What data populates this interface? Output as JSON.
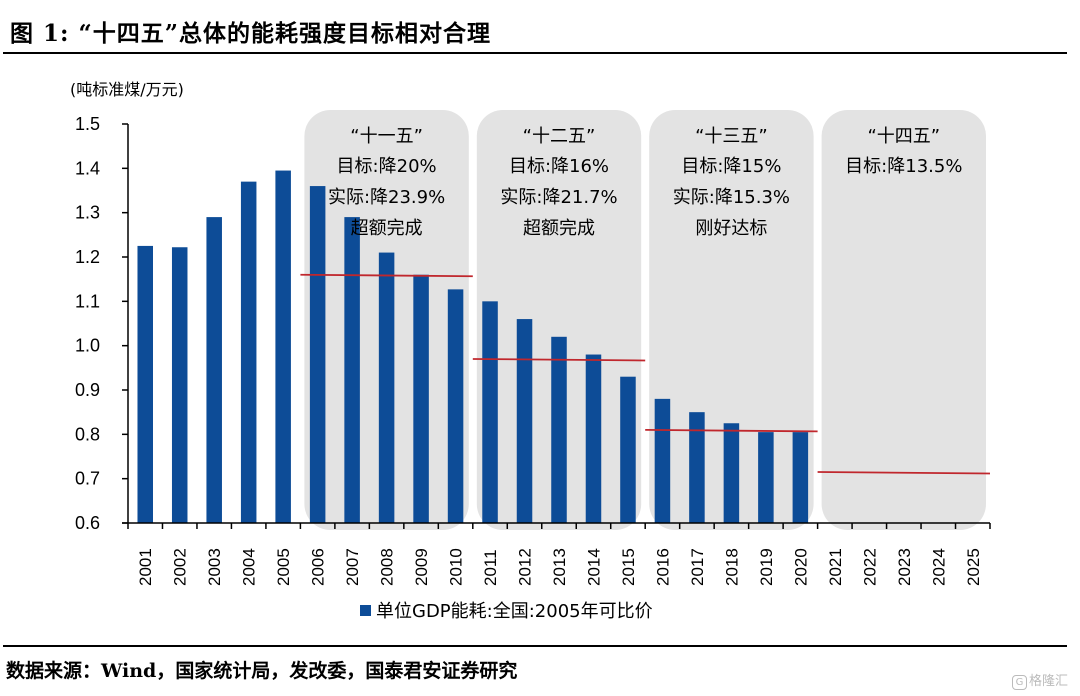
{
  "figure": {
    "title": "图 1: “十四五”总体的能耗强度目标相对合理",
    "source": "数据来源：Wind，国家统计局，发改委，国泰君安证券研究",
    "watermark": "格隆汇",
    "watermark_icon": "G"
  },
  "chart_data": {
    "type": "bar",
    "title": "“十四五”总体的能耗强度目标相对合理",
    "ylabel": "(吨标准煤/万元)",
    "xlabel": "",
    "ylim": [
      0.6,
      1.5
    ],
    "yticks": [
      "1.5",
      "1.4",
      "1.3",
      "1.2",
      "1.1",
      "1.0",
      "0.9",
      "0.8",
      "0.7",
      "0.6"
    ],
    "ytick_values": [
      1.5,
      1.4,
      1.3,
      1.2,
      1.1,
      1.0,
      0.9,
      0.8,
      0.7,
      0.6
    ],
    "grid": false,
    "legend_position": "bottom",
    "categories": [
      "2001",
      "2002",
      "2003",
      "2004",
      "2005",
      "2006",
      "2007",
      "2008",
      "2009",
      "2010",
      "2011",
      "2012",
      "2013",
      "2014",
      "2015",
      "2016",
      "2017",
      "2018",
      "2019",
      "2020",
      "2021",
      "2022",
      "2023",
      "2024",
      "2025"
    ],
    "series": [
      {
        "name": "单位GDP能耗:全国:2005年可比价",
        "color": "#0d4c97",
        "values": [
          1.225,
          1.222,
          1.29,
          1.37,
          1.395,
          1.36,
          1.29,
          1.21,
          1.16,
          1.127,
          1.1,
          1.06,
          1.02,
          0.98,
          0.93,
          0.88,
          0.85,
          0.825,
          0.805,
          0.805,
          null,
          null,
          null,
          null,
          null
        ]
      }
    ],
    "periods": [
      {
        "label": "“十一五”",
        "start": "2006",
        "end": "2010",
        "target_line": 1.16,
        "lines": [
          "目标:降20%",
          "实际:降23.9%",
          "超额完成"
        ]
      },
      {
        "label": "“十二五”",
        "start": "2011",
        "end": "2015",
        "target_line": 0.97,
        "lines": [
          "目标:降16%",
          "实际:降21.7%",
          "超额完成"
        ]
      },
      {
        "label": "“十三五”",
        "start": "2016",
        "end": "2020",
        "target_line": 0.81,
        "lines": [
          "目标:降15%",
          "实际:降15.3%",
          "刚好达标"
        ]
      },
      {
        "label": "“十四五”",
        "start": "2021",
        "end": "2025",
        "target_line": 0.715,
        "lines": [
          "目标:降13.5%"
        ]
      }
    ],
    "panel_color": "#e3e3e3",
    "target_line_color": "#c0272d"
  }
}
